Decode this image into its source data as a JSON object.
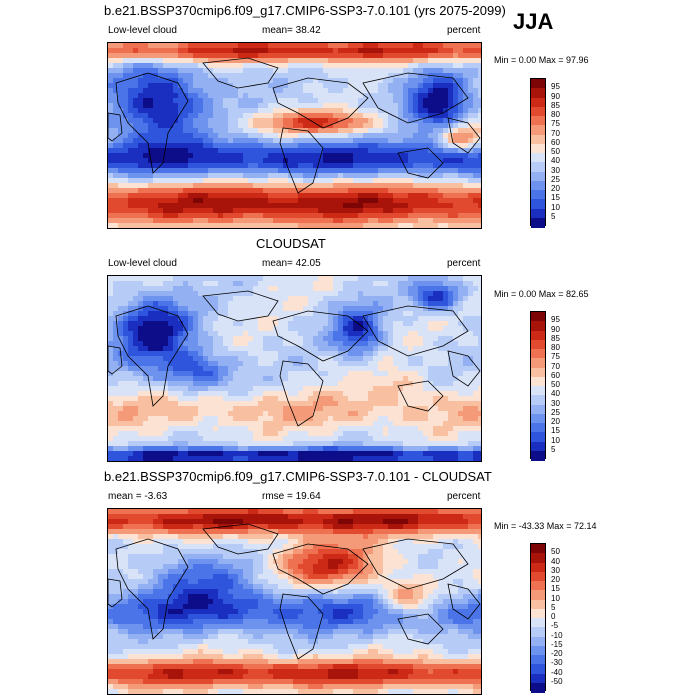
{
  "season": "JJA",
  "panels": [
    {
      "id": "model",
      "title": "b.e21.BSSP370cmip6.f09_g17.CMIP6-SSP3-7.0.101 (yrs 2075-2099)",
      "left_text": "Low-level cloud",
      "center_text": "mean=  38.42",
      "right_text": "percent",
      "minmax": "Min =   0.00 Max =  97.96",
      "colorbar_labels": [
        "95",
        "90",
        "85",
        "80",
        "75",
        "70",
        "60",
        "50",
        "40",
        "30",
        "25",
        "20",
        "15",
        "10",
        "5"
      ],
      "field_type": "model"
    },
    {
      "id": "obs",
      "title": "CLOUDSAT",
      "left_text": "Low-level cloud",
      "center_text": "mean=  42.05",
      "right_text": "percent",
      "minmax": "Min =   0.00 Max =  82.65",
      "colorbar_labels": [
        "95",
        "90",
        "85",
        "80",
        "75",
        "70",
        "60",
        "50",
        "40",
        "30",
        "25",
        "20",
        "15",
        "10",
        "5"
      ],
      "field_type": "obs"
    },
    {
      "id": "diff",
      "title": "b.e21.BSSP370cmip6.f09_g17.CMIP6-SSP3-7.0.101 - CLOUDSAT",
      "left_text": "mean =  -3.63",
      "center_text": "rmse =  19.64",
      "right_text": "percent",
      "minmax": "Min = -43.33 Max =  72.14",
      "colorbar_labels": [
        "50",
        "40",
        "30",
        "20",
        "15",
        "10",
        "5",
        "0",
        "-5",
        "-10",
        "-15",
        "-20",
        "-30",
        "-40",
        "-50"
      ],
      "field_type": "diff"
    }
  ],
  "colors": {
    "scale": [
      "#0d0d8a",
      "#1a2fc0",
      "#2f55dd",
      "#4b74e8",
      "#6d93ee",
      "#93b1f2",
      "#b6ccf6",
      "#d8e3f8",
      "#fbe2d2",
      "#f8c0a0",
      "#f49a78",
      "#ee7152",
      "#e24a30",
      "#cc2a17",
      "#a8140a",
      "#7d0505"
    ],
    "coastline": "#000000"
  }
}
